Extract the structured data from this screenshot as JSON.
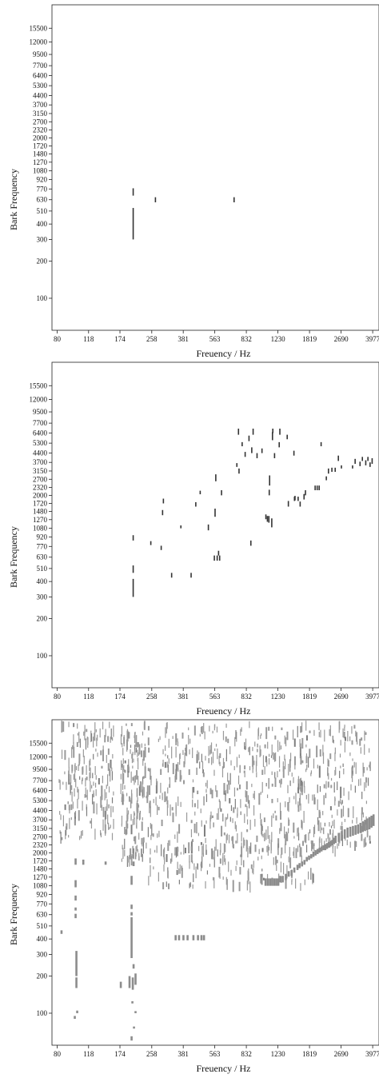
{
  "chart_data": [
    {
      "type": "heatmap",
      "xlabel": "Freuency / Hz",
      "ylabel": "Bark Frequency",
      "x_ticks": [
        "80",
        "118",
        "174",
        "258",
        "381",
        "563",
        "832",
        "1230",
        "1819",
        "2690",
        "3977"
      ],
      "y_ticks": [
        "100",
        "200",
        "300",
        "400",
        "510",
        "630",
        "770",
        "920",
        "1080",
        "1270",
        "1480",
        "1720",
        "2000",
        "2320",
        "2700",
        "3150",
        "3700",
        "4400",
        "5300",
        "6400",
        "7700",
        "9500",
        "12000",
        "15500"
      ],
      "xlim": [
        75,
        4300
      ],
      "ylim": [
        55,
        24000
      ],
      "grid": false,
      "mark_color": "#333333",
      "cells": [
        [
          205,
          300,
          540
        ],
        [
          205,
          680,
          780
        ],
        [
          270,
          600,
          660
        ],
        [
          715,
          600,
          660
        ]
      ]
    },
    {
      "type": "heatmap",
      "xlabel": "Freuency / Hz",
      "ylabel": "Bark Frequency",
      "x_ticks": [
        "80",
        "118",
        "174",
        "258",
        "381",
        "563",
        "832",
        "1230",
        "1819",
        "2690",
        "3977"
      ],
      "y_ticks": [
        "100",
        "200",
        "300",
        "400",
        "510",
        "630",
        "770",
        "920",
        "1080",
        "1270",
        "1480",
        "1720",
        "2000",
        "2320",
        "2700",
        "3150",
        "3700",
        "4400",
        "5300",
        "6400",
        "7700",
        "9500",
        "12000",
        "15500"
      ],
      "xlim": [
        75,
        4300
      ],
      "ylim": [
        55,
        24000
      ],
      "grid": false,
      "mark_color": "#333333",
      "cells": [
        [
          205,
          300,
          420
        ],
        [
          205,
          470,
          540
        ],
        [
          205,
          860,
          950
        ],
        [
          255,
          790,
          850
        ],
        [
          290,
          720,
          780
        ],
        [
          295,
          1380,
          1520
        ],
        [
          298,
          1720,
          1880
        ],
        [
          330,
          430,
          470
        ],
        [
          370,
          1080,
          1140
        ],
        [
          420,
          430,
          470
        ],
        [
          445,
          1620,
          1760
        ],
        [
          470,
          2040,
          2180
        ],
        [
          520,
          1040,
          1160
        ],
        [
          560,
          590,
          650
        ],
        [
          565,
          1340,
          1560
        ],
        [
          570,
          2600,
          2960
        ],
        [
          580,
          590,
          650
        ],
        [
          590,
          650,
          710
        ],
        [
          598,
          590,
          650
        ],
        [
          612,
          2000,
          2200
        ],
        [
          740,
          3400,
          3650
        ],
        [
          755,
          6200,
          6950
        ],
        [
          760,
          3000,
          3300
        ],
        [
          790,
          5000,
          5400
        ],
        [
          820,
          4100,
          4500
        ],
        [
          860,
          5500,
          6100
        ],
        [
          880,
          780,
          860
        ],
        [
          890,
          4400,
          4900
        ],
        [
          905,
          6200,
          6950
        ],
        [
          950,
          4000,
          4400
        ],
        [
          1010,
          4400,
          4800
        ],
        [
          1060,
          1280,
          1400
        ],
        [
          1080,
          1220,
          1360
        ],
        [
          1100,
          1200,
          1360
        ],
        [
          1105,
          2000,
          2220
        ],
        [
          1110,
          2400,
          2900
        ],
        [
          1140,
          1100,
          1300
        ],
        [
          1150,
          5600,
          6500
        ],
        [
          1155,
          6400,
          6950
        ],
        [
          1180,
          4000,
          4400
        ],
        [
          1250,
          4900,
          5400
        ],
        [
          1260,
          6200,
          6950
        ],
        [
          1380,
          5700,
          6200
        ],
        [
          1400,
          1620,
          1800
        ],
        [
          1500,
          4200,
          4600
        ],
        [
          1510,
          1800,
          1950
        ],
        [
          1520,
          1820,
          1980
        ],
        [
          1580,
          1800,
          1950
        ],
        [
          1620,
          1620,
          1780
        ],
        [
          1700,
          1850,
          2050
        ],
        [
          1730,
          2000,
          2200
        ],
        [
          1950,
          2200,
          2400
        ],
        [
          2000,
          2200,
          2400
        ],
        [
          2050,
          2200,
          2400
        ],
        [
          2100,
          5000,
          5400
        ],
        [
          2240,
          2650,
          2850
        ],
        [
          2300,
          3000,
          3300
        ],
        [
          2400,
          3100,
          3350
        ],
        [
          2500,
          3100,
          3350
        ],
        [
          2600,
          3800,
          4200
        ],
        [
          2700,
          3300,
          3500
        ],
        [
          3100,
          3300,
          3500
        ],
        [
          3200,
          3600,
          3950
        ],
        [
          3400,
          3450,
          3750
        ],
        [
          3500,
          3800,
          4100
        ],
        [
          3650,
          3500,
          3850
        ],
        [
          3750,
          3800,
          4100
        ],
        [
          3850,
          3400,
          3700
        ],
        [
          3950,
          3600,
          4000
        ]
      ]
    },
    {
      "type": "heatmap",
      "xlabel": "Freuency / Hz",
      "ylabel": "Bark Frequency",
      "x_ticks": [
        "80",
        "118",
        "174",
        "258",
        "381",
        "563",
        "832",
        "1230",
        "1819",
        "2690",
        "3977"
      ],
      "y_ticks": [
        "100",
        "200",
        "300",
        "400",
        "510",
        "630",
        "770",
        "920",
        "1080",
        "1270",
        "1480",
        "1720",
        "2000",
        "2320",
        "2700",
        "3150",
        "3700",
        "4400",
        "5300",
        "6400",
        "7700",
        "9500",
        "12000",
        "15500"
      ],
      "xlim": [
        75,
        4300
      ],
      "ylim": [
        55,
        24000
      ],
      "grid": false,
      "mark_color": "#9a9a9a",
      "cells": [
        [
          84,
          440,
          470
        ],
        [
          99,
          90,
          95
        ],
        [
          101,
          160,
          195
        ],
        [
          101,
          200,
          320
        ],
        [
          102,
          100,
          105
        ],
        [
          100,
          590,
          640
        ],
        [
          100,
          680,
          720
        ],
        [
          100,
          820,
          900
        ],
        [
          100,
          1050,
          1200
        ],
        [
          100,
          1600,
          1800
        ],
        [
          110,
          1600,
          1760
        ],
        [
          145,
          1600,
          1700
        ],
        [
          175,
          160,
          180
        ],
        [
          200,
          60,
          65
        ],
        [
          203,
          155,
          195
        ],
        [
          205,
          230,
          250
        ],
        [
          200,
          280,
          600
        ],
        [
          200,
          620,
          660
        ],
        [
          200,
          700,
          760
        ],
        [
          200,
          1100,
          1300
        ],
        [
          205,
          1560,
          1700
        ],
        [
          210,
          100,
          104
        ],
        [
          206,
          75,
          78
        ],
        [
          202,
          120,
          125
        ],
        [
          195,
          160,
          200
        ],
        [
          210,
          170,
          210
        ],
        [
          345,
          390,
          430
        ],
        [
          360,
          390,
          430
        ],
        [
          380,
          390,
          430
        ],
        [
          400,
          390,
          430
        ],
        [
          430,
          390,
          430
        ],
        [
          455,
          390,
          430
        ],
        [
          475,
          390,
          430
        ],
        [
          490,
          390,
          430
        ],
        [
          1050,
          1080,
          1240
        ],
        [
          1080,
          1080,
          1240
        ],
        [
          1110,
          1080,
          1240
        ],
        [
          1140,
          1080,
          1240
        ],
        [
          1170,
          1080,
          1240
        ],
        [
          1200,
          1080,
          1240
        ],
        [
          1230,
          1080,
          1240
        ],
        [
          1260,
          1150,
          1300
        ],
        [
          1300,
          1150,
          1300
        ],
        [
          1350,
          1200,
          1350
        ],
        [
          1400,
          1280,
          1420
        ],
        [
          1450,
          1300,
          1450
        ],
        [
          1500,
          1380,
          1520
        ],
        [
          1560,
          1450,
          1600
        ],
        [
          1600,
          1500,
          1650
        ],
        [
          1650,
          1550,
          1700
        ],
        [
          1700,
          1600,
          1750
        ],
        [
          1750,
          1700,
          1850
        ],
        [
          1800,
          1750,
          1900
        ],
        [
          1850,
          1800,
          1950
        ],
        [
          1900,
          1850,
          2050
        ],
        [
          1950,
          1900,
          2100
        ],
        [
          2000,
          1950,
          2150
        ],
        [
          2050,
          2000,
          2200
        ],
        [
          2100,
          2050,
          2250
        ],
        [
          2150,
          2100,
          2300
        ],
        [
          2200,
          2100,
          2350
        ],
        [
          2250,
          2150,
          2400
        ],
        [
          2300,
          2200,
          2450
        ],
        [
          2350,
          2250,
          2500
        ],
        [
          2400,
          2300,
          2550
        ],
        [
          2450,
          2350,
          2650
        ],
        [
          2500,
          2400,
          2750
        ],
        [
          2600,
          2450,
          2900
        ],
        [
          2700,
          2500,
          3000
        ],
        [
          2800,
          2600,
          3100
        ],
        [
          2900,
          2650,
          3200
        ],
        [
          3000,
          2700,
          3250
        ],
        [
          3100,
          2750,
          3300
        ],
        [
          3200,
          2800,
          3350
        ],
        [
          3300,
          2850,
          3400
        ],
        [
          3400,
          2900,
          3500
        ],
        [
          3500,
          2950,
          3600
        ],
        [
          3600,
          3000,
          3700
        ],
        [
          3700,
          3050,
          3800
        ],
        [
          3800,
          3100,
          3900
        ],
        [
          3900,
          3200,
          4000
        ],
        [
          4000,
          3300,
          4100
        ]
      ],
      "streaks": [
        {
          "x_from": 80,
          "x_to": 160,
          "y_from": 2600,
          "y_to": 22000,
          "count": 190,
          "seed": 11
        },
        {
          "x_from": 175,
          "x_to": 240,
          "y_from": 1700,
          "y_to": 22000,
          "count": 160,
          "seed": 23
        },
        {
          "x_from": 240,
          "x_to": 3900,
          "y_from": 2000,
          "y_to": 22000,
          "count": 650,
          "seed": 37
        },
        {
          "x_from": 240,
          "x_to": 1900,
          "y_from": 1050,
          "y_to": 2200,
          "count": 150,
          "seed": 41
        }
      ]
    }
  ]
}
